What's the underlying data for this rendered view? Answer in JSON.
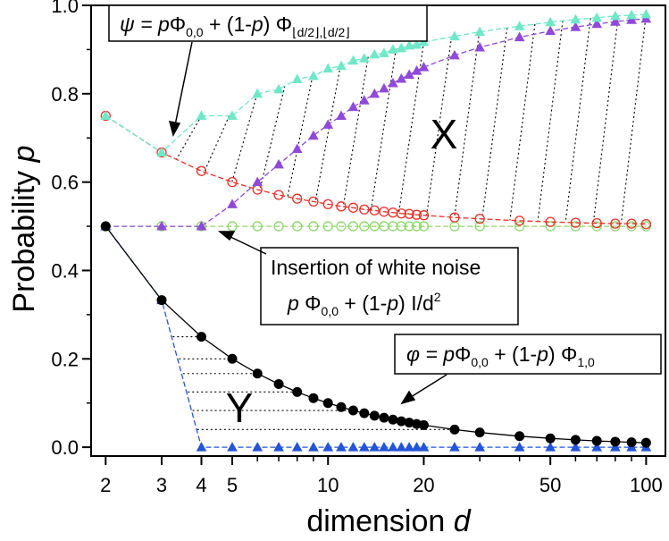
{
  "chart_data": {
    "type": "line",
    "x_scale": "log",
    "xlabel": {
      "text": "dimension",
      "var": "d"
    },
    "ylabel": {
      "text": "Probability",
      "var": "p"
    },
    "xlim": [
      1.8,
      115
    ],
    "ylim": [
      -0.02,
      1.0
    ],
    "x_ticks": [
      "2",
      "3",
      "4",
      "5",
      "10",
      "20",
      "50",
      "100"
    ],
    "y_ticks": [
      "0.0",
      "0.2",
      "0.4",
      "0.6",
      "0.8",
      "1.0"
    ],
    "region_labels": [
      "X",
      "Y"
    ],
    "colors": {
      "psi": "#6fe8c8",
      "purple": "#8f4ad8",
      "red": "#e8302a",
      "green": "#8ed66a",
      "black": "#000000",
      "blue": "#2454d8",
      "hatch": "#000000"
    },
    "series": [
      {
        "key": "psi",
        "formula": "ψ = p Φ_{0,0} + (1-p) Φ_{⌊d/2⌋,⌊d/2⌋}",
        "marker": "triangle",
        "d": [
          2,
          3,
          4,
          5,
          6,
          7,
          8,
          9,
          10,
          11,
          12,
          13,
          14,
          15,
          16,
          17,
          18,
          19,
          20,
          25,
          30,
          40,
          50,
          60,
          70,
          80,
          90,
          100
        ],
        "p": [
          0.75,
          0.667,
          0.75,
          0.75,
          0.8,
          0.81,
          0.833,
          0.84,
          0.857,
          0.863,
          0.875,
          0.88,
          0.889,
          0.892,
          0.9,
          0.903,
          0.909,
          0.911,
          0.917,
          0.93,
          0.94,
          0.953,
          0.962,
          0.968,
          0.972,
          0.976,
          0.978,
          0.98
        ]
      },
      {
        "key": "purple",
        "formula": "",
        "marker": "triangle",
        "d": [
          2,
          3,
          4,
          5,
          6,
          7,
          8,
          9,
          10,
          11,
          12,
          13,
          14,
          15,
          16,
          17,
          18,
          19,
          20,
          25,
          30,
          40,
          50,
          60,
          70,
          80,
          90,
          100
        ],
        "p": [
          0.5,
          0.5,
          0.5,
          0.55,
          0.6,
          0.64,
          0.675,
          0.705,
          0.73,
          0.75,
          0.77,
          0.785,
          0.8,
          0.812,
          0.824,
          0.834,
          0.843,
          0.852,
          0.86,
          0.887,
          0.905,
          0.928,
          0.942,
          0.951,
          0.958,
          0.963,
          0.967,
          0.97
        ]
      },
      {
        "key": "red",
        "formula": "",
        "marker": "circle",
        "d": [
          2,
          3,
          4,
          5,
          6,
          7,
          8,
          9,
          10,
          11,
          12,
          13,
          14,
          15,
          16,
          17,
          18,
          19,
          20,
          25,
          30,
          40,
          50,
          60,
          70,
          80,
          90,
          100
        ],
        "p": [
          0.75,
          0.667,
          0.625,
          0.6,
          0.583,
          0.571,
          0.5625,
          0.556,
          0.55,
          0.545,
          0.542,
          0.538,
          0.536,
          0.533,
          0.531,
          0.529,
          0.528,
          0.526,
          0.525,
          0.52,
          0.517,
          0.5125,
          0.51,
          0.508,
          0.507,
          0.506,
          0.506,
          0.505
        ]
      },
      {
        "key": "green",
        "formula": "",
        "marker": "circle",
        "d": [
          2,
          3,
          4,
          5,
          6,
          7,
          8,
          9,
          10,
          11,
          12,
          13,
          14,
          15,
          16,
          17,
          18,
          19,
          20,
          25,
          30,
          40,
          50,
          60,
          70,
          80,
          90,
          100
        ],
        "p": [
          0.5,
          0.5,
          0.5,
          0.5,
          0.5,
          0.5,
          0.5,
          0.5,
          0.5,
          0.5,
          0.5,
          0.5,
          0.5,
          0.5,
          0.5,
          0.5,
          0.5,
          0.5,
          0.5,
          0.5,
          0.5,
          0.5,
          0.5,
          0.5,
          0.5,
          0.5,
          0.5,
          0.5
        ]
      },
      {
        "key": "black",
        "formula": "φ = p Φ_{0,0} + (1-p) Φ_{1,0}",
        "marker": "circle",
        "d": [
          2,
          3,
          4,
          5,
          6,
          7,
          8,
          9,
          10,
          11,
          12,
          13,
          14,
          15,
          16,
          17,
          18,
          19,
          20,
          25,
          30,
          40,
          50,
          60,
          70,
          80,
          90,
          100
        ],
        "p": [
          0.5,
          0.333,
          0.25,
          0.2,
          0.1667,
          0.1429,
          0.125,
          0.111,
          0.1,
          0.0909,
          0.0833,
          0.0769,
          0.0714,
          0.0667,
          0.0625,
          0.0588,
          0.0556,
          0.0526,
          0.05,
          0.04,
          0.0333,
          0.025,
          0.02,
          0.0167,
          0.0143,
          0.0125,
          0.0111,
          0.01
        ]
      },
      {
        "key": "blue",
        "formula": "",
        "marker": "triangle",
        "d": [
          2,
          3,
          4,
          5,
          6,
          7,
          8,
          9,
          10,
          11,
          12,
          13,
          14,
          15,
          16,
          17,
          18,
          19,
          20,
          25,
          30,
          40,
          50,
          60,
          70,
          80,
          90,
          100
        ],
        "p": [
          0.5,
          0.333,
          0,
          0,
          0,
          0,
          0,
          0,
          0,
          0,
          0,
          0,
          0,
          0,
          0,
          0,
          0,
          0,
          0,
          0,
          0,
          0,
          0,
          0,
          0,
          0,
          0,
          0
        ]
      }
    ],
    "annotations": [
      {
        "key": "psi",
        "parts": [
          "ψ = ",
          "p",
          "Φ",
          "0,0",
          " + (1-",
          "p",
          ") Φ",
          "⌊d/2⌋,⌊d/2⌋"
        ]
      },
      {
        "key": "noise",
        "line1": "Insertion of white noise",
        "parts": [
          "p",
          " Φ",
          "0,0",
          " + (1-",
          "p",
          ") I/d",
          "2"
        ]
      },
      {
        "key": "phi",
        "parts": [
          "φ = ",
          "p",
          "Φ",
          "0,0",
          " + (1-",
          "p",
          ") Φ",
          "1,0"
        ]
      }
    ]
  }
}
